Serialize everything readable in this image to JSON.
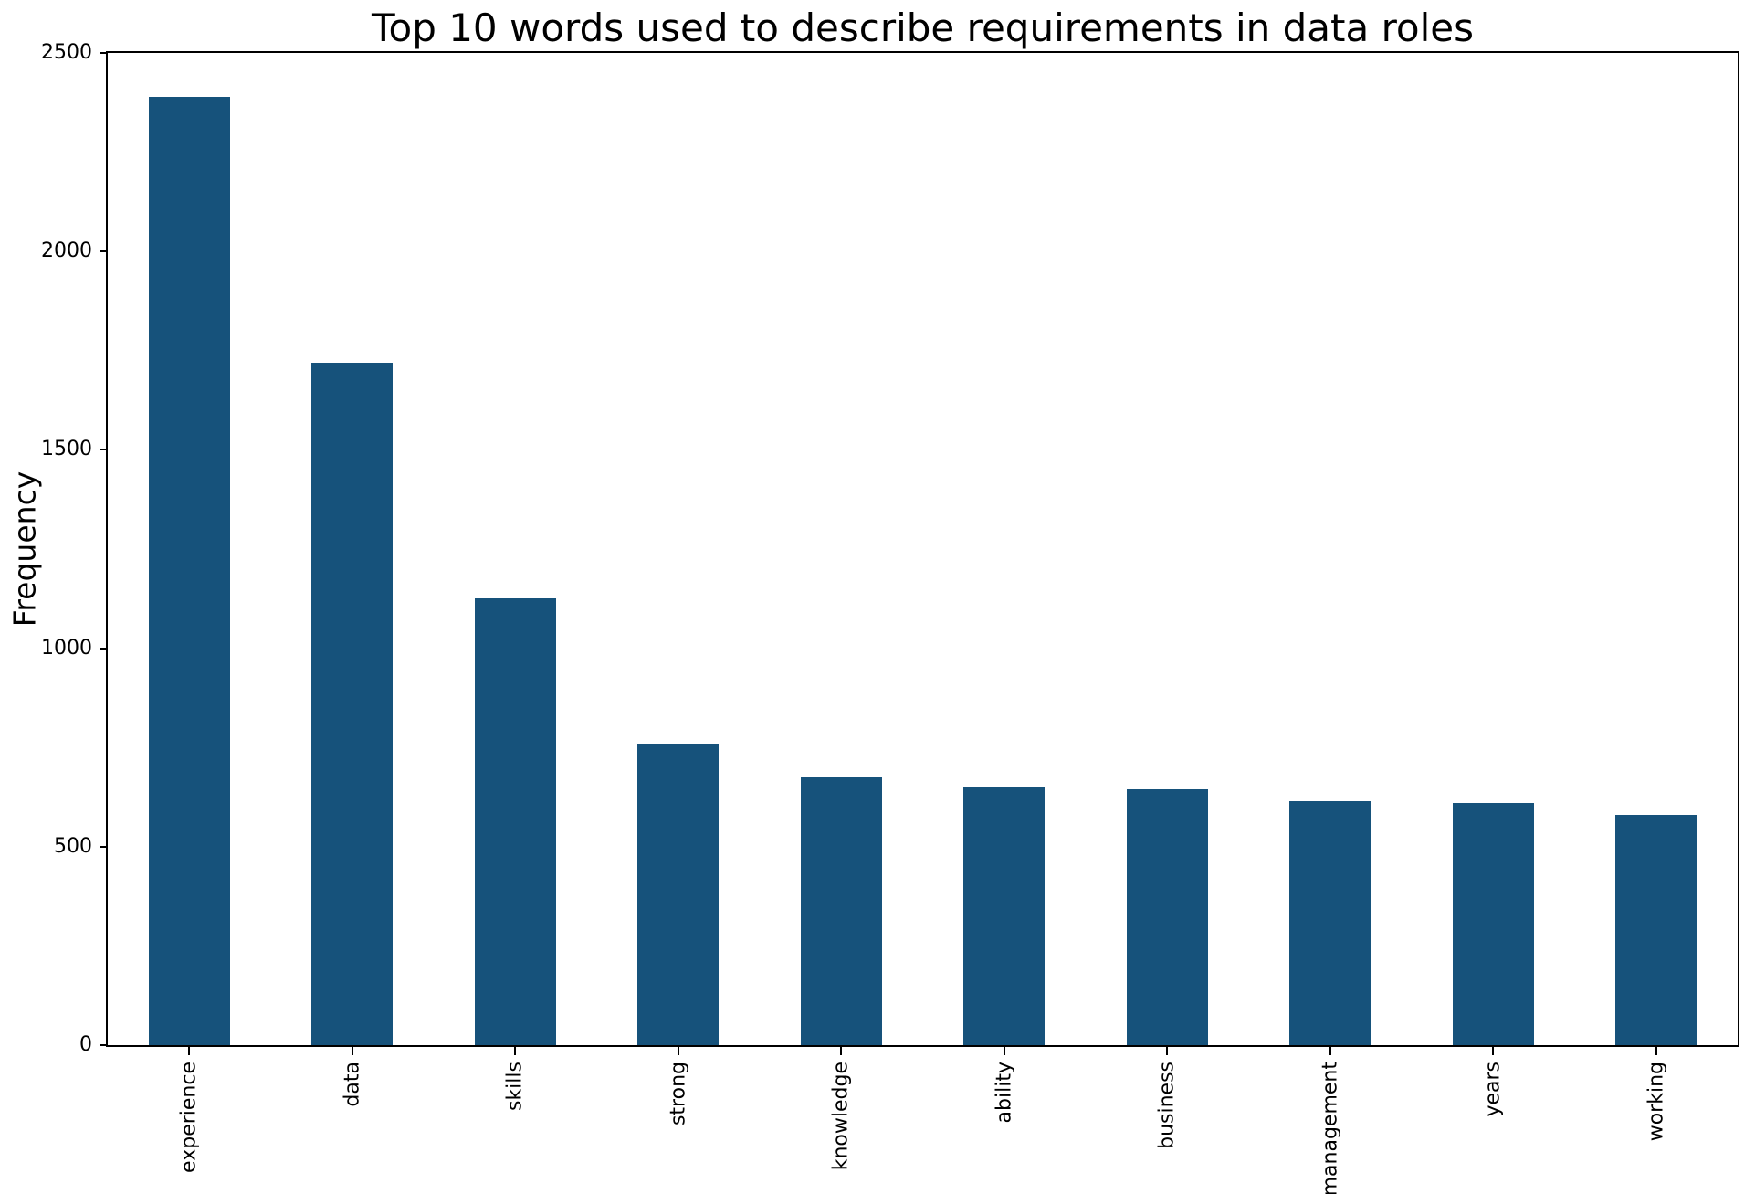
{
  "chart_data": {
    "type": "bar",
    "title": "Top 10 words used to describe requirements in data roles",
    "xlabel": "",
    "ylabel": "Frequency",
    "categories": [
      "experience",
      "data",
      "skills",
      "strong",
      "knowledge",
      "ability",
      "business",
      "management",
      "years",
      "working"
    ],
    "values": [
      2390,
      1720,
      1125,
      760,
      675,
      650,
      645,
      615,
      610,
      580
    ],
    "ylim": [
      0,
      2500
    ],
    "yticks": [
      0,
      500,
      1000,
      1500,
      2000,
      2500
    ],
    "x_tick_rotation_deg": 90,
    "grid": false,
    "legend_position": "none",
    "bar_color": "#16527b",
    "axis_color": "#000000",
    "text_color": "#000000",
    "background_color": "#ffffff"
  }
}
